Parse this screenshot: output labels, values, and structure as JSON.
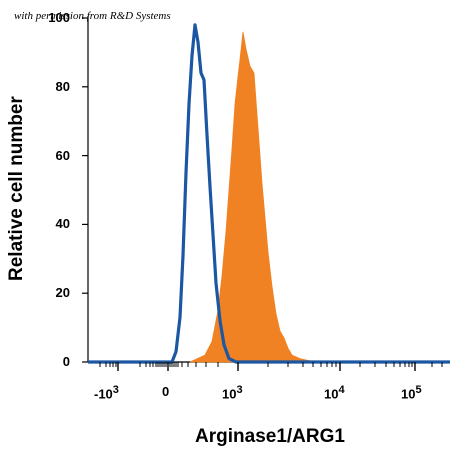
{
  "permission_note": "with permission from R&D Systems",
  "chart_data": {
    "type": "area",
    "xlabel": "Arginase1/ARG1",
    "ylabel": "Relative cell number",
    "ylim": [
      0,
      100
    ],
    "yticks": [
      0,
      20,
      40,
      60,
      80,
      100
    ],
    "x_scale": "biexponential",
    "xticks": [
      {
        "base": "-10",
        "exp": "3"
      },
      {
        "base": "0",
        "exp": ""
      },
      {
        "base": "10",
        "exp": "3"
      },
      {
        "base": "10",
        "exp": "4"
      },
      {
        "base": "10",
        "exp": "5"
      }
    ],
    "series": [
      {
        "style": "filled",
        "color": "#f08223",
        "points": [
          [
            190,
            0
          ],
          [
            205,
            2
          ],
          [
            212,
            6
          ],
          [
            218,
            15
          ],
          [
            222,
            25
          ],
          [
            226,
            38
          ],
          [
            229,
            50
          ],
          [
            232,
            62
          ],
          [
            235,
            75
          ],
          [
            238,
            83
          ],
          [
            240,
            88
          ],
          [
            243,
            96
          ],
          [
            246,
            91
          ],
          [
            250,
            86
          ],
          [
            254,
            84
          ],
          [
            256,
            76
          ],
          [
            259,
            64
          ],
          [
            262,
            52
          ],
          [
            265,
            42
          ],
          [
            268,
            32
          ],
          [
            272,
            22
          ],
          [
            276,
            14
          ],
          [
            280,
            9
          ],
          [
            284,
            7
          ],
          [
            288,
            4
          ],
          [
            292,
            2
          ],
          [
            300,
            1
          ],
          [
            315,
            0
          ]
        ]
      },
      {
        "style": "line",
        "color": "#1b57a2",
        "points": [
          [
            88,
            0
          ],
          [
            165,
            0
          ],
          [
            172,
            0
          ],
          [
            176,
            3
          ],
          [
            180,
            13
          ],
          [
            183,
            31
          ],
          [
            186,
            55
          ],
          [
            189,
            75
          ],
          [
            192,
            89
          ],
          [
            195,
            98
          ],
          [
            198,
            93
          ],
          [
            201,
            84
          ],
          [
            204,
            82
          ],
          [
            207,
            66
          ],
          [
            210,
            51
          ],
          [
            213,
            37
          ],
          [
            216,
            23
          ],
          [
            220,
            12
          ],
          [
            224,
            5
          ],
          [
            229,
            1
          ],
          [
            236,
            0
          ],
          [
            450,
            0
          ]
        ]
      }
    ]
  }
}
